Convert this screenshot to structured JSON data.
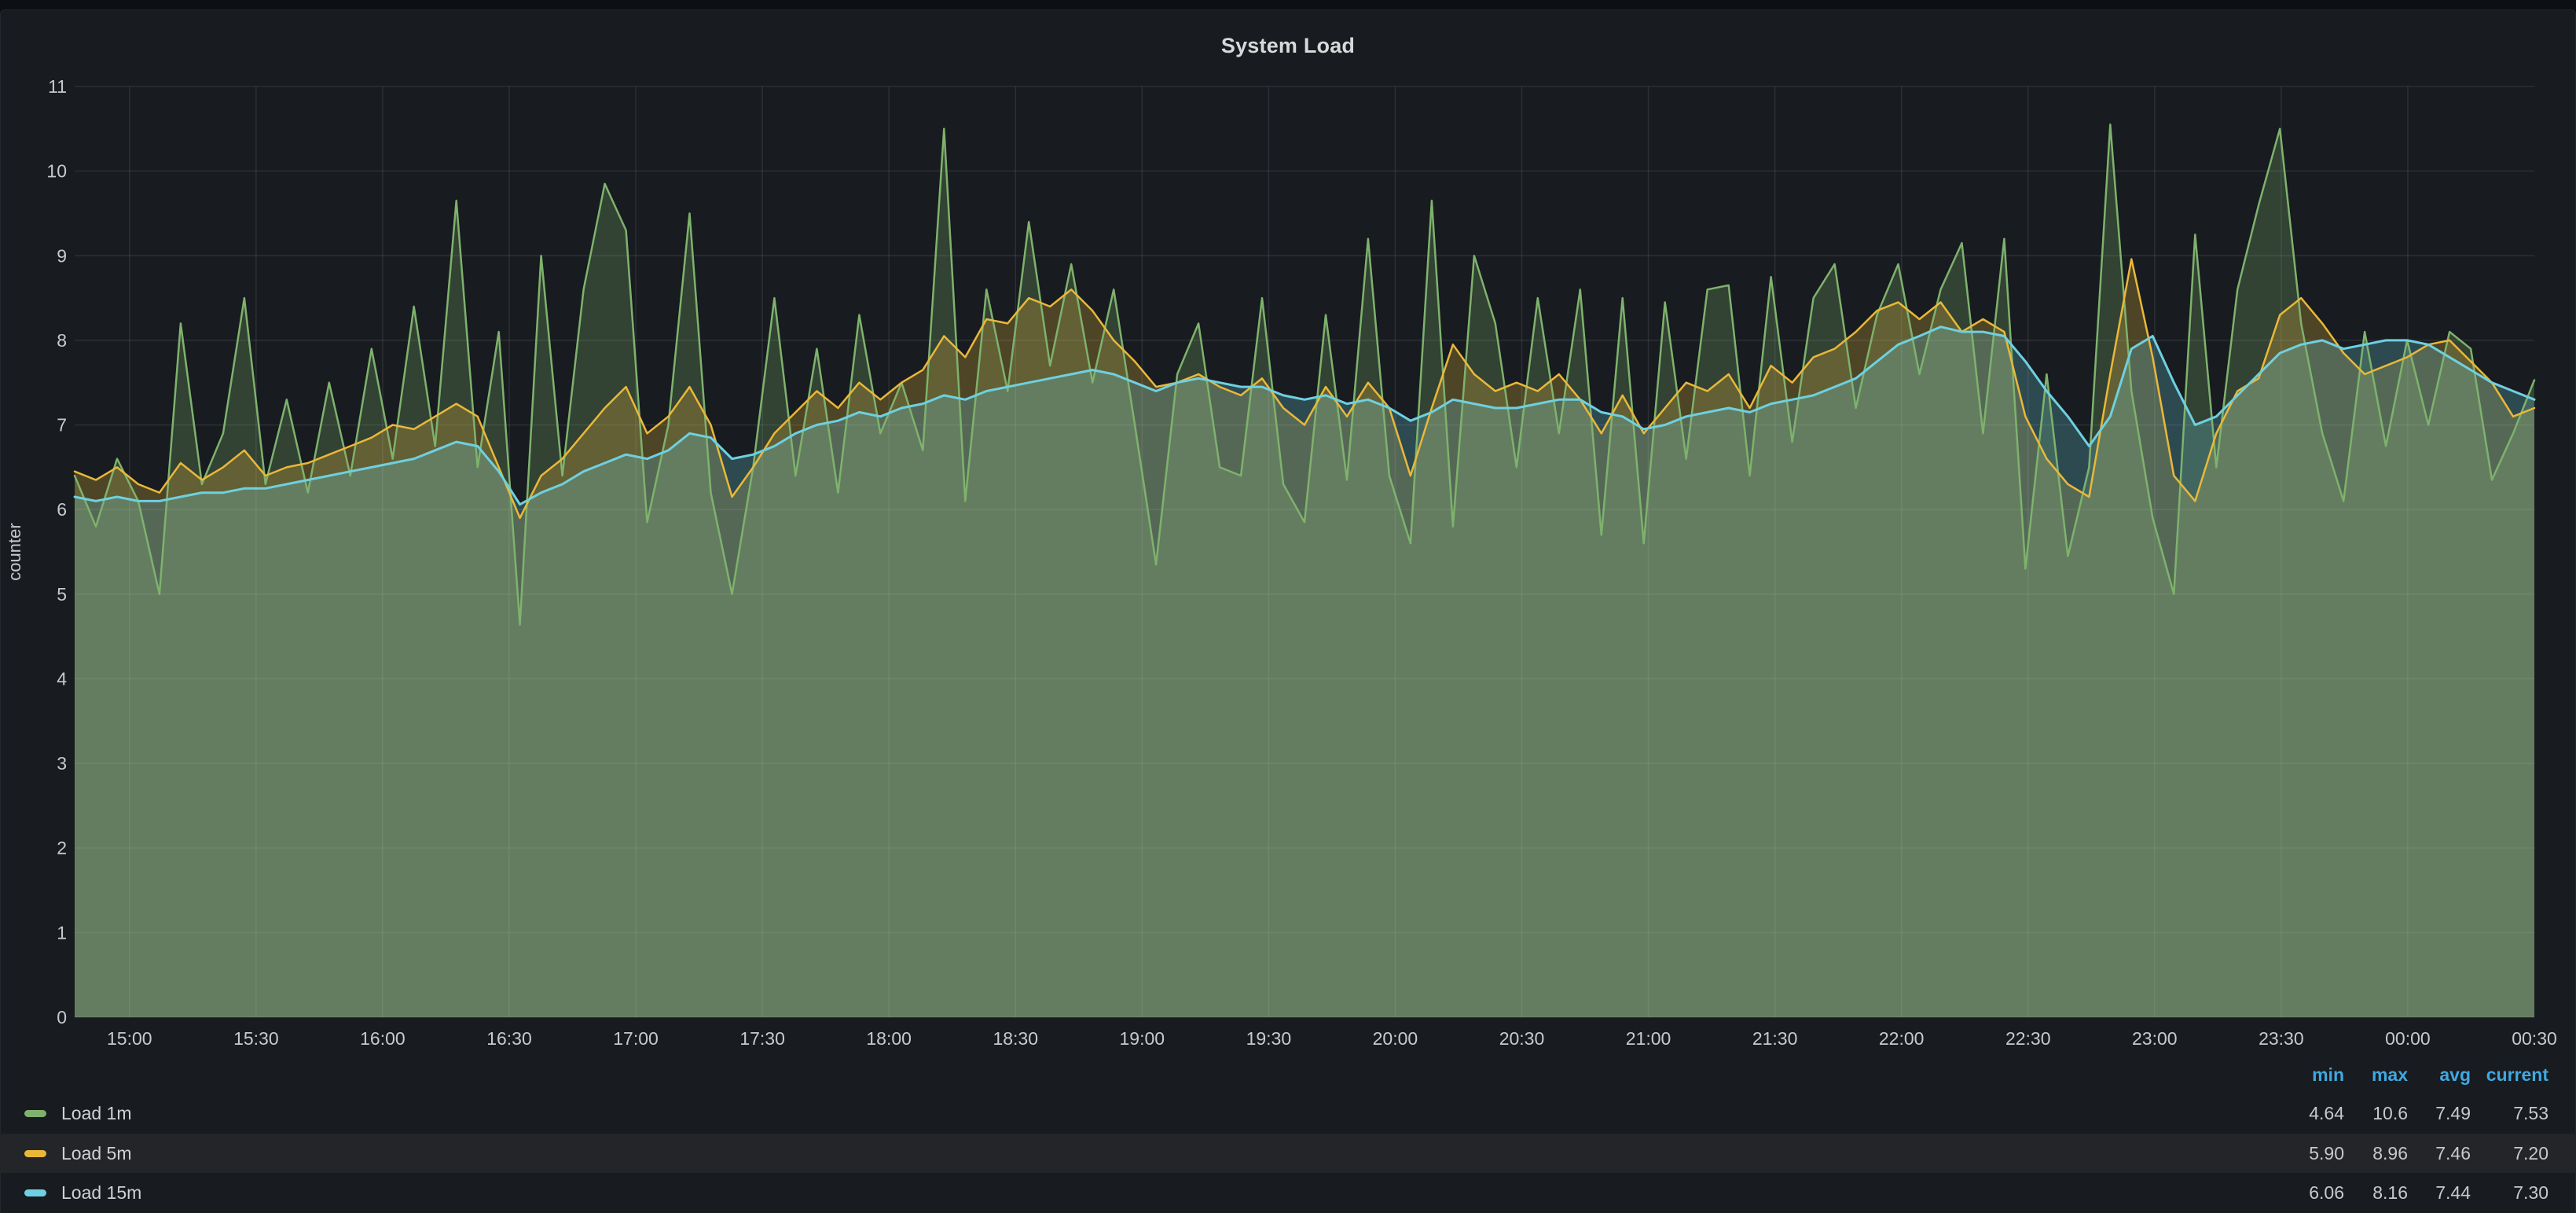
{
  "panel": {
    "title": "System Load"
  },
  "colors": {
    "page_background": "#0e0f13",
    "panel_background": "#181b1f",
    "grid": "rgba(204,204,220,0.11)",
    "axis_text": "#c8c9cd",
    "title_text": "#d8d9da",
    "legend_header": "#3fa9e1",
    "legend_row_highlight": "#232529"
  },
  "chart_data": {
    "type": "area",
    "title": "System Load",
    "xlabel": "",
    "ylabel": "counter",
    "ylim": [
      0,
      11
    ],
    "y_ticks": [
      0,
      1,
      2,
      3,
      4,
      5,
      6,
      7,
      8,
      9,
      10,
      11
    ],
    "grid": true,
    "legend_position": "bottom",
    "fill_opacity": 0.26,
    "x_range": {
      "start": "14:47",
      "end": "00:30",
      "total_minutes": 583
    },
    "x_ticks": {
      "minutes": [
        13,
        43,
        73,
        103,
        133,
        163,
        193,
        223,
        253,
        283,
        313,
        343,
        373,
        403,
        433,
        463,
        493,
        523,
        553,
        583
      ],
      "labels": [
        "15:00",
        "15:30",
        "16:00",
        "16:30",
        "17:00",
        "17:30",
        "18:00",
        "18:30",
        "19:00",
        "19:30",
        "20:00",
        "20:30",
        "21:00",
        "21:30",
        "22:00",
        "22:30",
        "23:00",
        "23:30",
        "00:00",
        "00:30"
      ]
    },
    "series": [
      {
        "name": "Load 1m",
        "color": "#7eb26d",
        "line_width": 2.5,
        "values": [
          6.4,
          5.8,
          6.6,
          6.1,
          5.0,
          8.2,
          6.3,
          6.9,
          8.5,
          6.3,
          7.3,
          6.2,
          7.5,
          6.4,
          7.9,
          6.6,
          8.4,
          6.75,
          9.65,
          6.5,
          8.1,
          4.64,
          9.0,
          6.4,
          8.6,
          9.85,
          9.3,
          5.85,
          7.0,
          9.5,
          6.2,
          5.0,
          6.5,
          8.5,
          6.4,
          7.9,
          6.2,
          8.3,
          6.9,
          7.5,
          6.7,
          10.5,
          6.1,
          8.6,
          7.4,
          9.4,
          7.7,
          8.9,
          7.5,
          8.6,
          7.0,
          5.35,
          7.6,
          8.2,
          6.5,
          6.4,
          8.5,
          6.3,
          5.85,
          8.3,
          6.35,
          9.2,
          6.4,
          5.6,
          9.65,
          5.8,
          9.0,
          8.2,
          6.5,
          8.5,
          6.9,
          8.6,
          5.7,
          8.5,
          5.6,
          8.45,
          6.6,
          8.6,
          8.65,
          6.4,
          8.75,
          6.8,
          8.5,
          8.9,
          7.2,
          8.3,
          8.9,
          7.6,
          8.6,
          9.15,
          6.9,
          9.2,
          5.3,
          7.6,
          5.45,
          6.5,
          10.55,
          7.4,
          5.9,
          5.0,
          9.25,
          6.5,
          8.6,
          9.6,
          10.5,
          8.2,
          6.9,
          6.1,
          8.1,
          6.75,
          8.0,
          7.0,
          8.1,
          7.9,
          6.35,
          6.9,
          7.53
        ]
      },
      {
        "name": "Load 5m",
        "color": "#eab839",
        "line_width": 2.5,
        "values": [
          6.45,
          6.35,
          6.5,
          6.3,
          6.2,
          6.55,
          6.35,
          6.5,
          6.7,
          6.4,
          6.5,
          6.55,
          6.65,
          6.75,
          6.85,
          7.0,
          6.95,
          7.1,
          7.25,
          7.1,
          6.5,
          5.9,
          6.4,
          6.6,
          6.9,
          7.2,
          7.45,
          6.9,
          7.1,
          7.45,
          7.0,
          6.15,
          6.5,
          6.9,
          7.15,
          7.4,
          7.2,
          7.5,
          7.3,
          7.5,
          7.65,
          8.05,
          7.8,
          8.25,
          8.2,
          8.5,
          8.4,
          8.6,
          8.35,
          8.0,
          7.75,
          7.45,
          7.5,
          7.6,
          7.45,
          7.35,
          7.55,
          7.2,
          7.0,
          7.45,
          7.1,
          7.5,
          7.2,
          6.4,
          7.2,
          7.95,
          7.6,
          7.4,
          7.5,
          7.4,
          7.6,
          7.3,
          6.9,
          7.35,
          6.9,
          7.2,
          7.5,
          7.4,
          7.6,
          7.2,
          7.7,
          7.5,
          7.8,
          7.9,
          8.1,
          8.35,
          8.45,
          8.25,
          8.45,
          8.1,
          8.25,
          8.1,
          7.1,
          6.6,
          6.3,
          6.15,
          7.6,
          8.96,
          7.8,
          6.4,
          6.1,
          6.9,
          7.4,
          7.55,
          8.3,
          8.5,
          8.2,
          7.85,
          7.6,
          7.7,
          7.8,
          7.95,
          8.0,
          7.75,
          7.5,
          7.1,
          7.2
        ]
      },
      {
        "name": "Load 15m",
        "color": "#6ed0e0",
        "line_width": 3,
        "values": [
          6.15,
          6.1,
          6.15,
          6.1,
          6.1,
          6.15,
          6.2,
          6.2,
          6.25,
          6.25,
          6.3,
          6.35,
          6.4,
          6.45,
          6.5,
          6.55,
          6.6,
          6.7,
          6.8,
          6.75,
          6.45,
          6.06,
          6.2,
          6.3,
          6.45,
          6.55,
          6.65,
          6.6,
          6.7,
          6.9,
          6.85,
          6.6,
          6.65,
          6.75,
          6.9,
          7.0,
          7.05,
          7.15,
          7.1,
          7.2,
          7.25,
          7.35,
          7.3,
          7.4,
          7.45,
          7.5,
          7.55,
          7.6,
          7.65,
          7.6,
          7.5,
          7.4,
          7.5,
          7.55,
          7.5,
          7.45,
          7.45,
          7.35,
          7.3,
          7.35,
          7.25,
          7.3,
          7.2,
          7.05,
          7.15,
          7.3,
          7.25,
          7.2,
          7.2,
          7.25,
          7.3,
          7.3,
          7.15,
          7.1,
          6.95,
          7.0,
          7.1,
          7.15,
          7.2,
          7.15,
          7.25,
          7.3,
          7.35,
          7.45,
          7.55,
          7.75,
          7.95,
          8.05,
          8.16,
          8.1,
          8.1,
          8.05,
          7.75,
          7.4,
          7.1,
          6.75,
          7.1,
          7.9,
          8.05,
          7.5,
          7.0,
          7.1,
          7.35,
          7.6,
          7.85,
          7.95,
          8.0,
          7.9,
          7.95,
          8.0,
          8.0,
          7.95,
          7.8,
          7.65,
          7.5,
          7.4,
          7.3
        ]
      }
    ]
  },
  "legend": {
    "headers": [
      "min",
      "max",
      "avg",
      "current"
    ],
    "rows": [
      {
        "label": "Load 1m",
        "color": "#7eb26d",
        "min": "4.64",
        "max": "10.6",
        "avg": "7.49",
        "current": "7.53",
        "highlighted": false
      },
      {
        "label": "Load 5m",
        "color": "#eab839",
        "min": "5.90",
        "max": "8.96",
        "avg": "7.46",
        "current": "7.20",
        "highlighted": true
      },
      {
        "label": "Load 15m",
        "color": "#6ed0e0",
        "min": "6.06",
        "max": "8.16",
        "avg": "7.44",
        "current": "7.30",
        "highlighted": false
      }
    ]
  }
}
